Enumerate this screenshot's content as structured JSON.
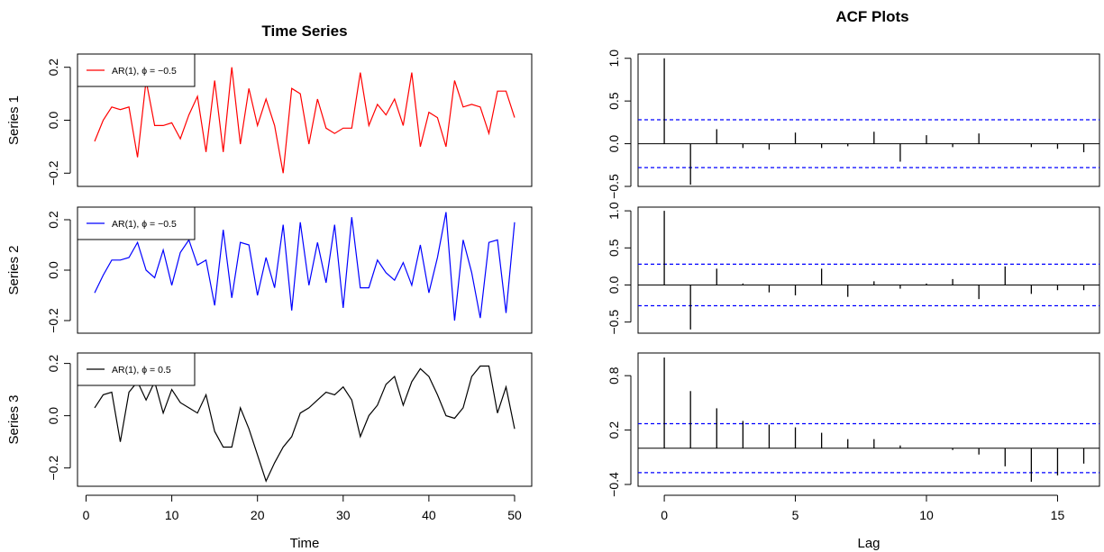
{
  "left_panel_title": "Time Series",
  "right_panel_title": "ACF Plots",
  "chart_data": [
    {
      "type": "line",
      "panel": "time-series",
      "ylabel": "Series 1",
      "xlim": [
        1,
        50
      ],
      "ylim": [
        -0.25,
        0.25
      ],
      "yticks": [
        -0.2,
        0.0,
        0.2
      ],
      "legend": {
        "label": "AR(1), ϕ = −0.5",
        "position": "top-left"
      },
      "series": [
        {
          "color": "#ff0000",
          "x": [
            1,
            2,
            3,
            4,
            5,
            6,
            7,
            8,
            9,
            10,
            11,
            12,
            13,
            14,
            15,
            16,
            17,
            18,
            19,
            20,
            21,
            22,
            23,
            24,
            25,
            26,
            27,
            28,
            29,
            30,
            31,
            32,
            33,
            34,
            35,
            36,
            37,
            38,
            39,
            40,
            41,
            42,
            43,
            44,
            45,
            46,
            47,
            48,
            49,
            50
          ],
          "y": [
            -0.08,
            0.0,
            0.05,
            0.04,
            0.05,
            -0.14,
            0.15,
            -0.02,
            -0.02,
            -0.01,
            -0.07,
            0.02,
            0.09,
            -0.12,
            0.15,
            -0.12,
            0.2,
            -0.09,
            0.12,
            -0.02,
            0.08,
            -0.02,
            -0.2,
            0.12,
            0.1,
            -0.09,
            0.08,
            -0.03,
            -0.05,
            -0.03,
            -0.03,
            0.18,
            -0.02,
            0.06,
            0.02,
            0.08,
            -0.02,
            0.18,
            -0.1,
            0.03,
            0.01,
            -0.1,
            0.15,
            0.05,
            0.06,
            0.05,
            -0.05,
            0.11,
            0.11,
            0.01
          ]
        }
      ]
    },
    {
      "type": "line",
      "panel": "time-series",
      "ylabel": "Series 2",
      "xlim": [
        1,
        50
      ],
      "ylim": [
        -0.25,
        0.25
      ],
      "yticks": [
        -0.2,
        0.0,
        0.2
      ],
      "legend": {
        "label": "AR(1), ϕ = −0.5",
        "position": "top-left"
      },
      "series": [
        {
          "color": "#0000ff",
          "x": [
            1,
            2,
            3,
            4,
            5,
            6,
            7,
            8,
            9,
            10,
            11,
            12,
            13,
            14,
            15,
            16,
            17,
            18,
            19,
            20,
            21,
            22,
            23,
            24,
            25,
            26,
            27,
            28,
            29,
            30,
            31,
            32,
            33,
            34,
            35,
            36,
            37,
            38,
            39,
            40,
            41,
            42,
            43,
            44,
            45,
            46,
            47,
            48,
            49,
            50
          ],
          "y": [
            -0.09,
            -0.02,
            0.04,
            0.04,
            0.05,
            0.11,
            0.0,
            -0.03,
            0.08,
            -0.06,
            0.07,
            0.12,
            0.02,
            0.04,
            -0.14,
            0.16,
            -0.11,
            0.11,
            0.1,
            -0.1,
            0.05,
            -0.07,
            0.18,
            -0.16,
            0.19,
            -0.06,
            0.11,
            -0.05,
            0.18,
            -0.15,
            0.21,
            -0.07,
            -0.07,
            0.04,
            -0.01,
            -0.04,
            0.03,
            -0.06,
            0.1,
            -0.09,
            0.05,
            0.23,
            -0.2,
            0.12,
            -0.01,
            -0.19,
            0.11,
            0.12,
            -0.17,
            0.19
          ]
        }
      ]
    },
    {
      "type": "line",
      "panel": "time-series",
      "ylabel": "Series 3",
      "xlabel": "Time",
      "xlim": [
        1,
        50
      ],
      "ylim": [
        -0.27,
        0.24
      ],
      "yticks": [
        -0.2,
        0.0,
        0.2
      ],
      "xticks": [
        0,
        10,
        20,
        30,
        40,
        50
      ],
      "legend": {
        "label": "AR(1), ϕ = 0.5",
        "position": "top-left"
      },
      "series": [
        {
          "color": "#000000",
          "x": [
            1,
            2,
            3,
            4,
            5,
            6,
            7,
            8,
            9,
            10,
            11,
            12,
            13,
            14,
            15,
            16,
            17,
            18,
            19,
            20,
            21,
            22,
            23,
            24,
            25,
            26,
            27,
            28,
            29,
            30,
            31,
            32,
            33,
            34,
            35,
            36,
            37,
            38,
            39,
            40,
            41,
            42,
            43,
            44,
            45,
            46,
            47,
            48,
            49,
            50
          ],
          "y": [
            0.03,
            0.08,
            0.09,
            -0.1,
            0.09,
            0.13,
            0.06,
            0.13,
            0.01,
            0.1,
            0.05,
            0.03,
            0.01,
            0.08,
            -0.06,
            -0.12,
            -0.12,
            0.03,
            -0.05,
            -0.15,
            -0.25,
            -0.18,
            -0.12,
            -0.08,
            0.01,
            0.03,
            0.06,
            0.09,
            0.08,
            0.11,
            0.06,
            -0.08,
            0.0,
            0.04,
            0.12,
            0.15,
            0.04,
            0.13,
            0.18,
            0.15,
            0.08,
            0.0,
            -0.01,
            0.03,
            0.15,
            0.19,
            0.19,
            0.01,
            0.11,
            -0.05
          ]
        }
      ]
    },
    {
      "type": "bar",
      "panel": "acf",
      "xlim": [
        0,
        16
      ],
      "ylim": [
        -0.5,
        1.05
      ],
      "yticks": [
        -0.5,
        0.0,
        0.5,
        1.0
      ],
      "ytick_labels": [
        "−0.5",
        "0.0",
        "0.5",
        "1.0"
      ],
      "confidence_bound": 0.28,
      "x": [
        0,
        1,
        2,
        3,
        4,
        5,
        6,
        7,
        8,
        9,
        10,
        11,
        12,
        13,
        14,
        15,
        16
      ],
      "values": [
        1.0,
        -0.48,
        0.17,
        -0.05,
        -0.07,
        0.13,
        -0.05,
        -0.03,
        0.14,
        -0.21,
        0.1,
        -0.04,
        0.12,
        0.0,
        -0.04,
        -0.06,
        -0.1
      ]
    },
    {
      "type": "bar",
      "panel": "acf",
      "xlim": [
        0,
        16
      ],
      "ylim": [
        -0.65,
        1.05
      ],
      "yticks": [
        -0.5,
        0.0,
        0.5,
        1.0
      ],
      "ytick_labels": [
        "−0.5",
        "0.0",
        "0.5",
        "1.0"
      ],
      "confidence_bound": 0.28,
      "x": [
        0,
        1,
        2,
        3,
        4,
        5,
        6,
        7,
        8,
        9,
        10,
        11,
        12,
        13,
        14,
        15,
        16
      ],
      "values": [
        1.0,
        -0.6,
        0.22,
        0.02,
        -0.1,
        -0.14,
        0.22,
        -0.16,
        0.05,
        -0.05,
        0.02,
        0.08,
        -0.19,
        0.25,
        -0.12,
        -0.07,
        -0.07
      ]
    },
    {
      "type": "bar",
      "panel": "acf",
      "xlabel": "Lag",
      "xlim": [
        0,
        16
      ],
      "ylim": [
        -0.42,
        1.05
      ],
      "yticks": [
        -0.4,
        0.2,
        0.8
      ],
      "ytick_labels": [
        "−0.4",
        "0.2",
        "0.8"
      ],
      "xticks": [
        0,
        5,
        10,
        15
      ],
      "confidence_bound": 0.27,
      "x": [
        0,
        1,
        2,
        3,
        4,
        5,
        6,
        7,
        8,
        9,
        10,
        11,
        12,
        13,
        14,
        15,
        16
      ],
      "values": [
        1.0,
        0.63,
        0.44,
        0.3,
        0.26,
        0.23,
        0.17,
        0.1,
        0.1,
        0.03,
        0.0,
        -0.02,
        -0.07,
        -0.2,
        -0.37,
        -0.3,
        -0.17
      ]
    }
  ]
}
